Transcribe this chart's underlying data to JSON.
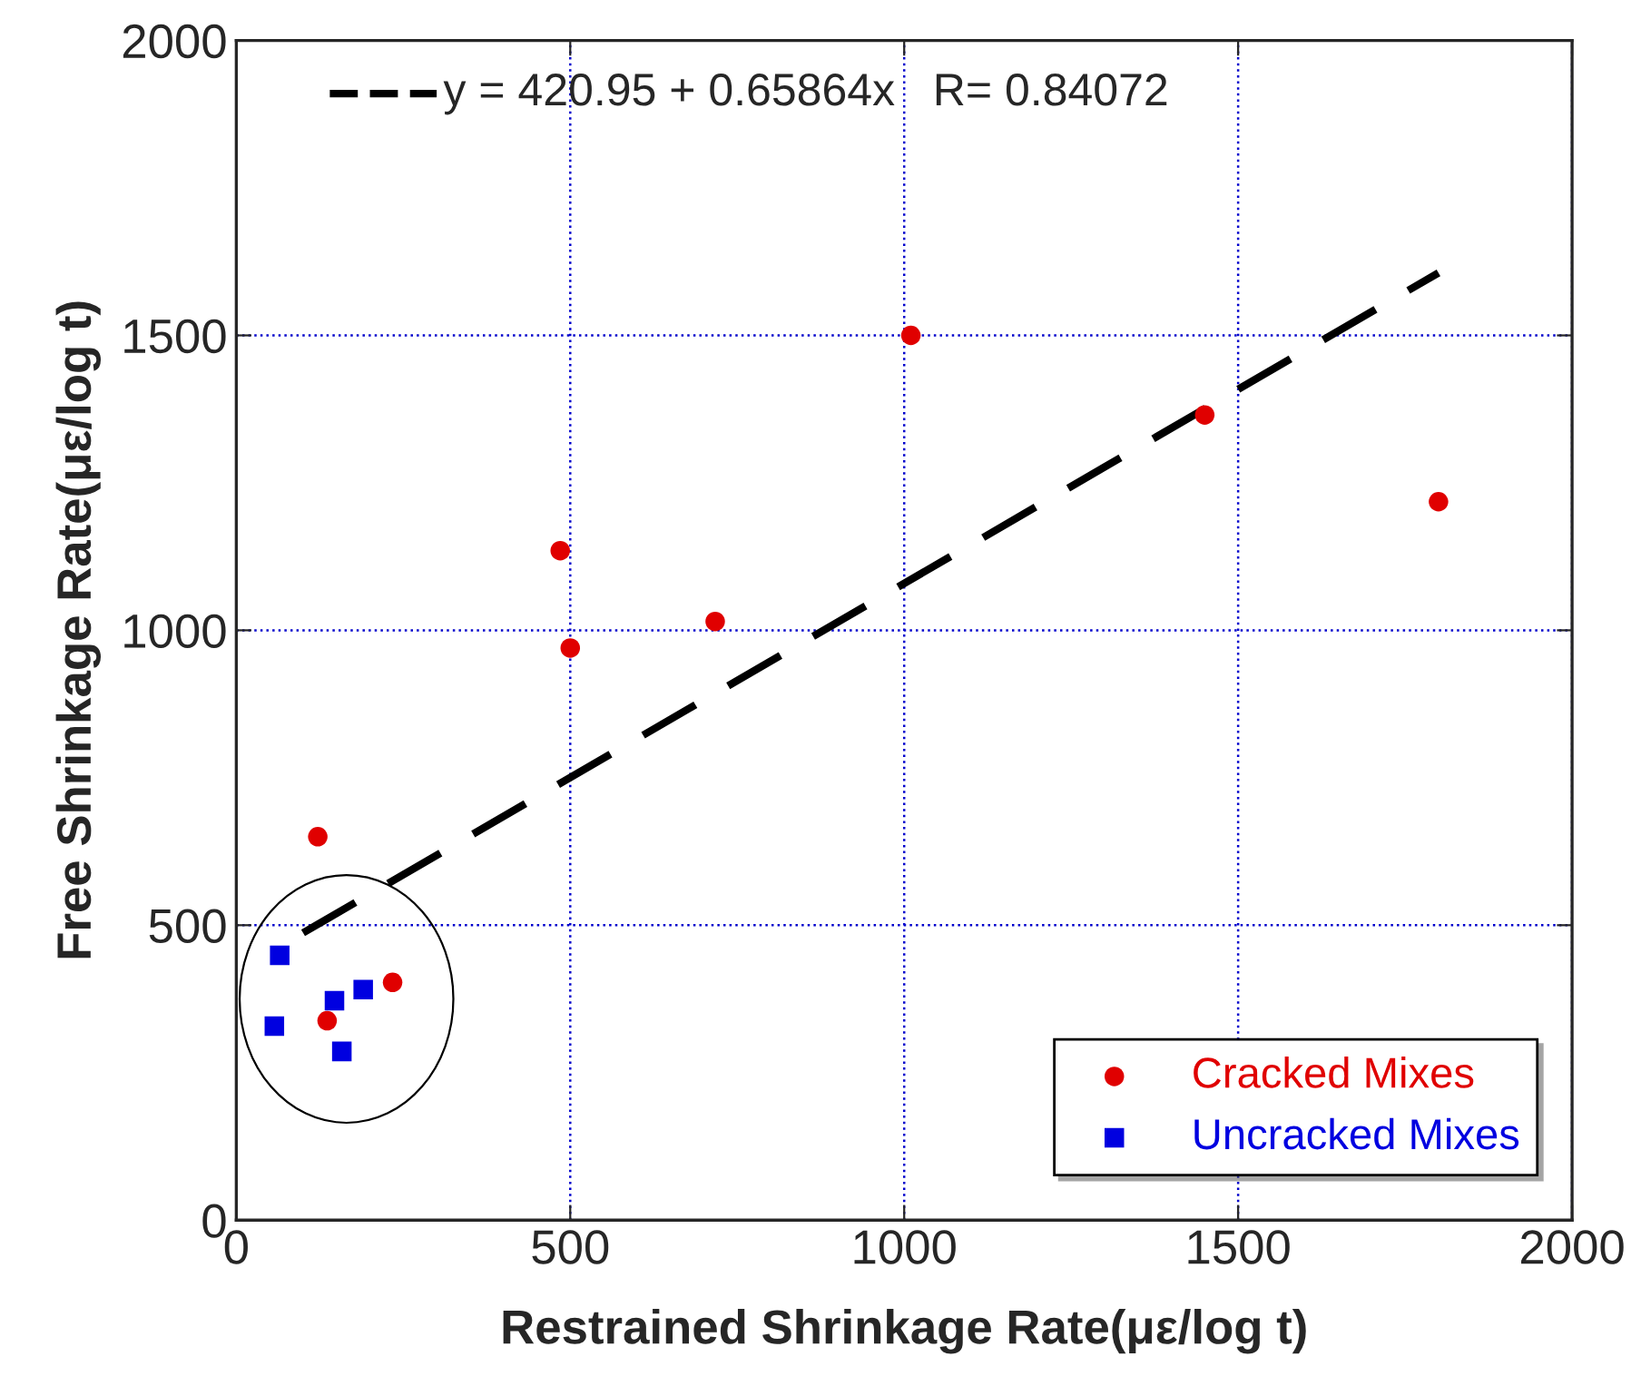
{
  "chart_data": {
    "type": "scatter",
    "xlabel": "Restrained Shrinkage Rate(με/log t)",
    "ylabel": "Free Shrinkage Rate(με/log t)",
    "xlim": [
      0,
      2000
    ],
    "ylim": [
      0,
      2000
    ],
    "xticks": [
      0,
      500,
      1000,
      1500,
      2000
    ],
    "yticks": [
      0,
      500,
      1000,
      1500,
      2000
    ],
    "grid": true,
    "legend": "bottom right",
    "series": [
      {
        "name": "Cracked Mixes",
        "color": "#e00000",
        "marker": "circle",
        "x": [
          122,
          1010,
          1450,
          1800,
          485,
          500,
          717,
          234,
          136
        ],
        "values": [
          650,
          1500,
          1365,
          1218,
          1135,
          970,
          1015,
          403,
          338
        ]
      },
      {
        "name": "Uncracked Mixes",
        "color": "#0000e0",
        "marker": "square",
        "x": [
          65,
          57,
          147,
          190,
          158
        ],
        "values": [
          449,
          329,
          372,
          391,
          286
        ]
      },
      {
        "type": "line",
        "color": "#000000",
        "line_style": "dashed",
        "x": [
          100,
          1800
        ],
        "values": [
          487,
          1606
        ]
      }
    ],
    "annotations": [
      "y = 420.95 + 0.65864x   R= 0.84072"
    ]
  }
}
